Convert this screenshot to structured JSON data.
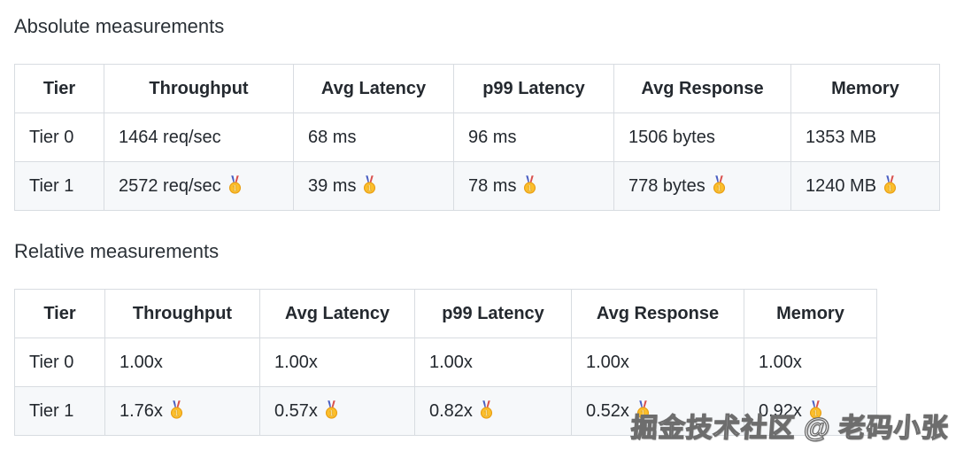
{
  "sections": [
    {
      "title": "Absolute measurements",
      "table": {
        "columns": [
          "Tier",
          "Throughput",
          "Avg Latency",
          "p99 Latency",
          "Avg Response",
          "Memory"
        ],
        "rows": [
          {
            "striped": false,
            "cells": [
              {
                "text": "Tier 0",
                "medal": false
              },
              {
                "text": "1464 req/sec",
                "medal": false
              },
              {
                "text": "68 ms",
                "medal": false
              },
              {
                "text": "96 ms",
                "medal": false
              },
              {
                "text": "1506 bytes",
                "medal": false
              },
              {
                "text": "1353 MB",
                "medal": false
              }
            ]
          },
          {
            "striped": true,
            "cells": [
              {
                "text": "Tier 1",
                "medal": false
              },
              {
                "text": "2572 req/sec",
                "medal": true
              },
              {
                "text": "39 ms",
                "medal": true
              },
              {
                "text": "78 ms",
                "medal": true
              },
              {
                "text": "778 bytes",
                "medal": true
              },
              {
                "text": "1240 MB",
                "medal": true
              }
            ]
          }
        ]
      }
    },
    {
      "title": "Relative measurements",
      "table": {
        "columns": [
          "Tier",
          "Throughput",
          "Avg Latency",
          "p99 Latency",
          "Avg Response",
          "Memory"
        ],
        "rows": [
          {
            "striped": false,
            "cells": [
              {
                "text": "Tier 0",
                "medal": false
              },
              {
                "text": "1.00x",
                "medal": false
              },
              {
                "text": "1.00x",
                "medal": false
              },
              {
                "text": "1.00x",
                "medal": false
              },
              {
                "text": "1.00x",
                "medal": false
              },
              {
                "text": "1.00x",
                "medal": false
              }
            ]
          },
          {
            "striped": true,
            "cells": [
              {
                "text": "Tier 1",
                "medal": false
              },
              {
                "text": "1.76x",
                "medal": true
              },
              {
                "text": "0.57x",
                "medal": true
              },
              {
                "text": "0.82x",
                "medal": true
              },
              {
                "text": "0.52x",
                "medal": true
              },
              {
                "text": "0.92x",
                "medal": true
              }
            ]
          }
        ]
      }
    }
  ],
  "watermark": {
    "text": "掘金技术社区 @ 老码小张"
  },
  "icons": {
    "medal": "gold-medal-icon"
  },
  "colors": {
    "stripe_row": "#f6f8fa",
    "table_border": "#d8dce1",
    "text": "#24292f",
    "medal_gold": "#fcbf2b",
    "medal_rim": "#e89f16",
    "ribbon_blue": "#4a5fc1",
    "ribbon_red": "#d9514e",
    "watermark_fill": "#ffffff"
  }
}
